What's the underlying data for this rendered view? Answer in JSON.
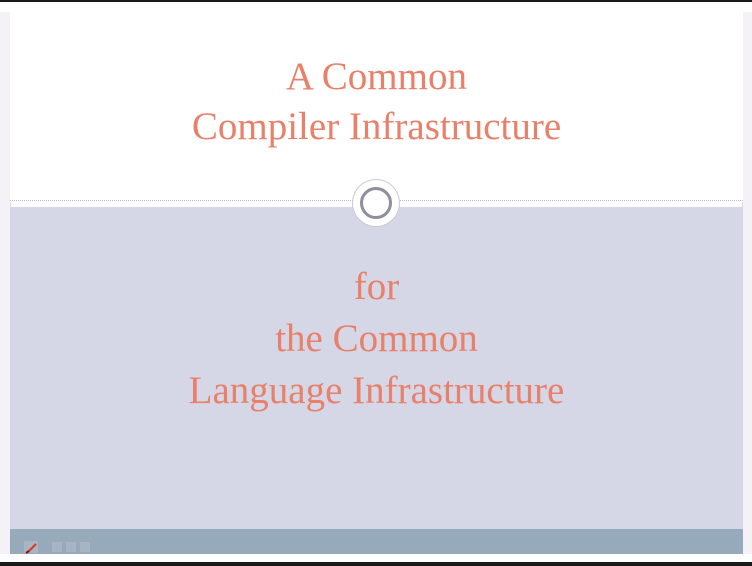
{
  "slide": {
    "title_lines": [
      "A Common",
      "Compiler Infrastructure"
    ],
    "subtitle_lines": [
      "for",
      "the Common",
      "Language Infrastructure"
    ]
  },
  "colors": {
    "title_text": "#e8806a",
    "subtitle_background": "#d5d6e6",
    "footer_bar": "#96aabb"
  },
  "icons": {
    "center_ornament": "ring-icon",
    "slideshow_pen": "pen-icon"
  }
}
